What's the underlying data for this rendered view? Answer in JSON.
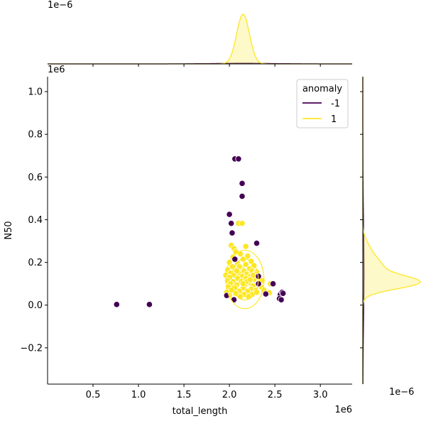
{
  "chart_data": {
    "type": "scatter",
    "xlabel": "total_length",
    "ylabel": "N50",
    "x_offset_text": "1e6",
    "y_offset_text": "1e6",
    "top_marginal_offset_text": "1e−6",
    "right_marginal_offset_text": "1e−6",
    "xlim": [
      0.0,
      3.35
    ],
    "ylim": [
      -0.37,
      1.07
    ],
    "xticks": [
      {
        "value": 0.5,
        "label": "0.5"
      },
      {
        "value": 1.0,
        "label": "1.0"
      },
      {
        "value": 1.5,
        "label": "1.5"
      },
      {
        "value": 2.0,
        "label": "2.0"
      },
      {
        "value": 2.5,
        "label": "2.5"
      },
      {
        "value": 3.0,
        "label": "3.0"
      }
    ],
    "yticks": [
      {
        "value": -0.2,
        "label": "−0.2"
      },
      {
        "value": 0.0,
        "label": "0.0"
      },
      {
        "value": 0.2,
        "label": "0.2"
      },
      {
        "value": 0.4,
        "label": "0.4"
      },
      {
        "value": 0.6,
        "label": "0.6"
      },
      {
        "value": 0.8,
        "label": "0.8"
      },
      {
        "value": 1.0,
        "label": "1.0"
      }
    ],
    "legend": {
      "title": "anomaly",
      "placement": "top-right",
      "entries": [
        {
          "label": "-1",
          "color": "#440154"
        },
        {
          "label": "1",
          "color": "#fde725"
        }
      ]
    },
    "series": [
      {
        "name": "-1",
        "color": "#440154",
        "points": [
          [
            0.76,
            0.003
          ],
          [
            1.12,
            0.003
          ],
          [
            2.06,
            0.685
          ],
          [
            2.1,
            0.685
          ],
          [
            2.14,
            0.57
          ],
          [
            2.14,
            0.51
          ],
          [
            2.0,
            0.425
          ],
          [
            2.02,
            0.383
          ],
          [
            2.03,
            0.338
          ],
          [
            2.3,
            0.29
          ],
          [
            2.06,
            0.215
          ],
          [
            2.32,
            0.135
          ],
          [
            2.32,
            0.1
          ],
          [
            2.48,
            0.1
          ],
          [
            2.4,
            0.052
          ],
          [
            2.05,
            0.025
          ],
          [
            1.97,
            0.045
          ],
          [
            2.56,
            0.05
          ],
          [
            2.58,
            0.06
          ],
          [
            2.55,
            0.03
          ],
          [
            2.57,
            0.025
          ],
          [
            2.59,
            0.055
          ]
        ]
      },
      {
        "name": "1",
        "color": "#fde725",
        "points": [
          [
            2.1,
            0.383
          ],
          [
            2.14,
            0.383
          ],
          [
            2.02,
            0.28
          ],
          [
            2.05,
            0.265
          ],
          [
            2.18,
            0.275
          ],
          [
            2.07,
            0.25
          ],
          [
            2.12,
            0.24
          ],
          [
            2.2,
            0.23
          ],
          [
            2.04,
            0.225
          ],
          [
            2.15,
            0.215
          ],
          [
            2.24,
            0.205
          ],
          [
            2.0,
            0.2
          ],
          [
            2.09,
            0.195
          ],
          [
            2.18,
            0.19
          ],
          [
            2.27,
            0.185
          ],
          [
            2.03,
            0.18
          ],
          [
            2.13,
            0.175
          ],
          [
            2.22,
            0.17
          ],
          [
            1.98,
            0.165
          ],
          [
            2.07,
            0.165
          ],
          [
            2.16,
            0.16
          ],
          [
            2.25,
            0.16
          ],
          [
            2.3,
            0.155
          ],
          [
            2.01,
            0.15
          ],
          [
            2.1,
            0.15
          ],
          [
            2.19,
            0.145
          ],
          [
            2.28,
            0.145
          ],
          [
            1.96,
            0.14
          ],
          [
            2.05,
            0.14
          ],
          [
            2.14,
            0.135
          ],
          [
            2.23,
            0.135
          ],
          [
            2.33,
            0.13
          ],
          [
            2.0,
            0.13
          ],
          [
            2.09,
            0.125
          ],
          [
            2.18,
            0.125
          ],
          [
            2.27,
            0.12
          ],
          [
            2.36,
            0.115
          ],
          [
            1.98,
            0.115
          ],
          [
            2.04,
            0.11
          ],
          [
            2.13,
            0.11
          ],
          [
            2.22,
            0.105
          ],
          [
            2.31,
            0.1
          ],
          [
            2.01,
            0.1
          ],
          [
            2.08,
            0.095
          ],
          [
            2.17,
            0.095
          ],
          [
            2.26,
            0.09
          ],
          [
            2.35,
            0.085
          ],
          [
            1.99,
            0.085
          ],
          [
            2.06,
            0.08
          ],
          [
            2.15,
            0.08
          ],
          [
            2.24,
            0.075
          ],
          [
            2.29,
            0.07
          ],
          [
            2.02,
            0.07
          ],
          [
            2.11,
            0.065
          ],
          [
            2.2,
            0.065
          ],
          [
            2.38,
            0.07
          ],
          [
            1.97,
            0.06
          ],
          [
            2.07,
            0.055
          ],
          [
            2.16,
            0.05
          ],
          [
            2.25,
            0.05
          ],
          [
            2.12,
            0.04
          ],
          [
            2.21,
            0.04
          ],
          [
            2.0,
            0.045
          ],
          [
            2.3,
            0.06
          ],
          [
            2.19,
            0.11
          ],
          [
            2.11,
            0.18
          ],
          [
            2.23,
            0.12
          ],
          [
            2.45,
            0.1
          ],
          [
            2.44,
            0.058
          ],
          [
            2.08,
            0.16
          ],
          [
            2.15,
            0.1
          ],
          [
            2.26,
            0.14
          ]
        ]
      }
    ],
    "top_marginal": {
      "type": "kde",
      "series": [
        {
          "name": "1",
          "color": "#fde725",
          "peak_x": 2.15,
          "bandwidth": 0.07,
          "peak_fraction": 0.9
        },
        {
          "name": "-1",
          "color": "#440154",
          "peak_x": 2.15,
          "bandwidth": 0.35,
          "peak_fraction": 0.01
        }
      ]
    },
    "right_marginal": {
      "type": "kde",
      "series": [
        {
          "name": "1",
          "color": "#fde725",
          "components": [
            {
              "mean": 0.105,
              "sd": 0.03,
              "weight": 0.9
            },
            {
              "mean": 0.175,
              "sd": 0.05,
              "weight": 0.35
            },
            {
              "mean": 0.27,
              "sd": 0.04,
              "weight": 0.08
            }
          ]
        },
        {
          "name": "-1",
          "color": "#440154",
          "components": [
            {
              "mean": 0.15,
              "sd": 0.25,
              "weight": 0.02
            }
          ]
        }
      ]
    }
  }
}
